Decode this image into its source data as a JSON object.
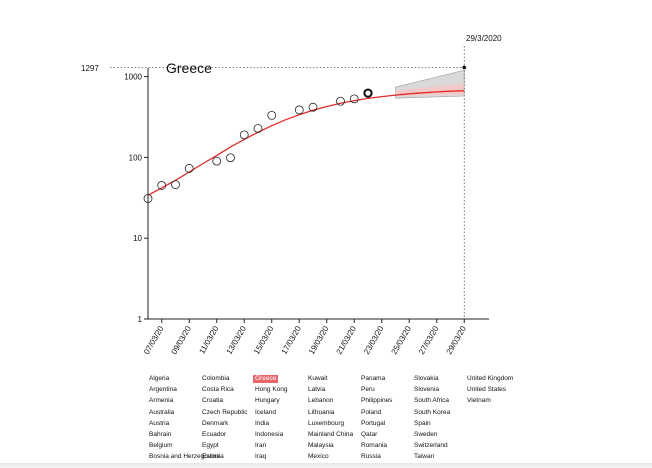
{
  "chart_data": {
    "type": "line",
    "title": "Greece",
    "scale_y": "log",
    "ylim": [
      1,
      1297
    ],
    "y_ticks": [
      "1",
      "10",
      "100",
      "1000"
    ],
    "x_ticks": [
      "07/03/20",
      "09/03/20",
      "11/03/20",
      "13/03/20",
      "15/03/20",
      "17/03/20",
      "19/03/20",
      "21/03/20",
      "23/03/20",
      "25/03/20",
      "27/03/20",
      "29/03/20"
    ],
    "forecast_date_label": "29/3/2020",
    "forecast_value_label": "1297",
    "observed": {
      "x": [
        "06/03/20",
        "07/03/20",
        "08/03/20",
        "09/03/20",
        "11/03/20",
        "12/03/20",
        "13/03/20",
        "14/03/20",
        "15/03/20",
        "17/03/20",
        "18/03/20",
        "20/03/20",
        "21/03/20",
        "22/03/20"
      ],
      "y": [
        31,
        45,
        46,
        73,
        90,
        99,
        190,
        228,
        331,
        387,
        418,
        495,
        530,
        624
      ]
    },
    "fit": {
      "x": [
        "06/03/20",
        "07/03/20",
        "08/03/20",
        "09/03/20",
        "10/03/20",
        "11/03/20",
        "12/03/20",
        "13/03/20",
        "14/03/20",
        "15/03/20",
        "16/03/20",
        "17/03/20",
        "18/03/20",
        "19/03/20",
        "20/03/20",
        "21/03/20",
        "22/03/20",
        "23/03/20",
        "24/03/20",
        "25/03/20",
        "26/03/20",
        "27/03/20",
        "28/03/20",
        "29/03/20"
      ],
      "y": [
        34,
        42,
        52,
        66,
        84,
        106,
        135,
        167,
        205,
        247,
        292,
        338,
        383,
        427,
        468,
        505,
        538,
        566,
        591,
        612,
        630,
        646,
        659,
        670
      ]
    },
    "forecast_band_outer": {
      "x": [
        "24/03/20",
        "29/03/20"
      ],
      "upper": [
        740,
        1200
      ],
      "lower": [
        540,
        575
      ]
    },
    "forecast_band_inner": {
      "x": [
        "24/03/20",
        "29/03/20"
      ],
      "upper": [
        670,
        820
      ],
      "lower": [
        580,
        600
      ]
    },
    "highlight_point": {
      "x": "22/03/20",
      "y": 624
    },
    "colors": {
      "fit": "#e32b2b",
      "points": "#222222",
      "band_outer": "#d9d9d9",
      "band_inner": "#f2c9c9",
      "selected": "#e8676b"
    }
  },
  "countries": [
    [
      "Algeria",
      "Argentina",
      "Armenia",
      "Australia",
      "Austria",
      "Bahrain",
      "Belgium",
      "Bosnia and Herzegovina"
    ],
    [
      "Colombia",
      "Costa Rica",
      "Croatia",
      "Czech Republic",
      "Denmark",
      "Ecuador",
      "Egypt",
      "Estonia"
    ],
    [
      "Greece",
      "Hong Kong",
      "Hungary",
      "Iceland",
      "India",
      "Indonesia",
      "Iran",
      "Iraq"
    ],
    [
      "Kuwait",
      "Latvia",
      "Lebanon",
      "Lithuania",
      "Luxembourg",
      "Mainland China",
      "Malaysia",
      "Mexico"
    ],
    [
      "Panama",
      "Peru",
      "Philippines",
      "Poland",
      "Portugal",
      "Qatar",
      "Romania",
      "Russia"
    ],
    [
      "Slovakia",
      "Slovenia",
      "South Africa",
      "South Korea",
      "Spain",
      "Sweden",
      "Switzerland",
      "Taiwan"
    ],
    [
      "United Kingdom",
      "United States",
      "Vietnam"
    ]
  ],
  "selected_country": "Greece"
}
